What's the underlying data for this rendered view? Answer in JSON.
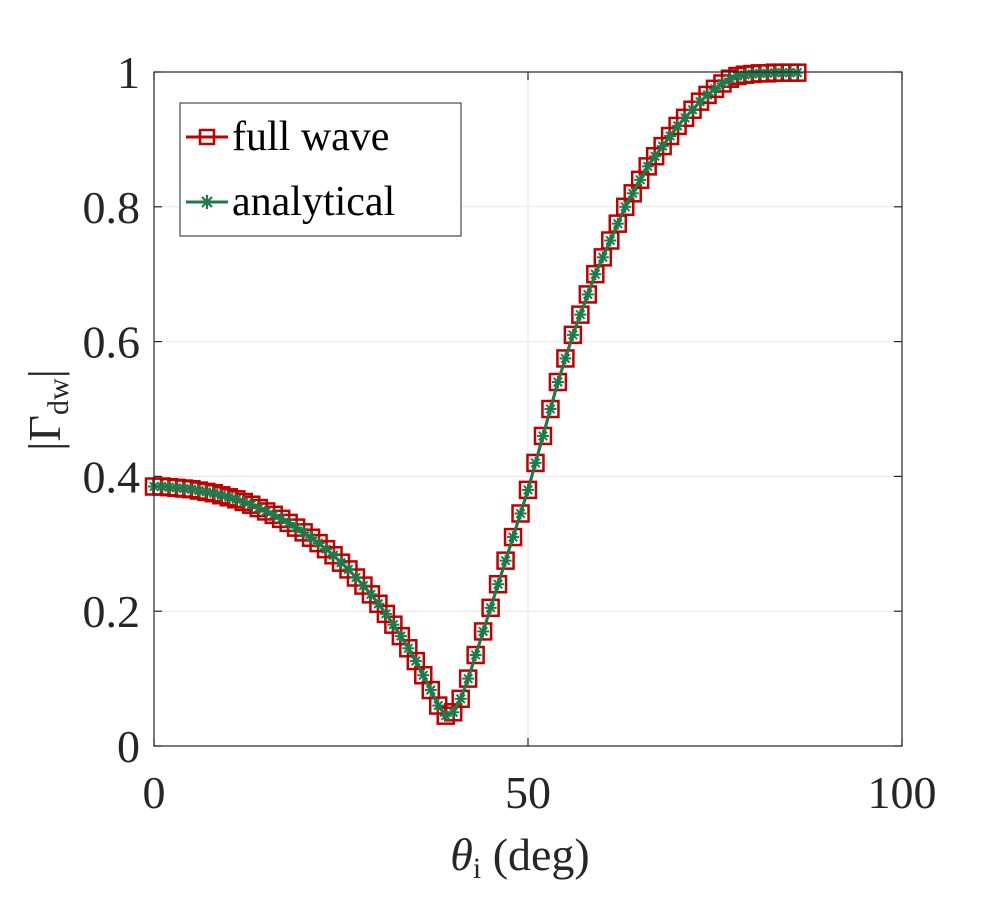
{
  "chart_data": {
    "type": "line",
    "title": "",
    "xlabel": {
      "main": "θ",
      "sub": "i",
      "rest": " (deg)"
    },
    "ylabel": {
      "main": "|Γ",
      "sub": "dw",
      "rest": "|"
    },
    "xlim": [
      0,
      100
    ],
    "ylim": [
      0,
      1
    ],
    "xticks": [
      0,
      50,
      100
    ],
    "xtick_labels": [
      "0",
      "50",
      "100"
    ],
    "yticks": [
      0,
      0.2,
      0.4,
      0.6,
      0.8,
      1
    ],
    "ytick_labels": [
      "0",
      "0.2",
      "0.4",
      "0.6",
      "0.8",
      "1"
    ],
    "grid": true,
    "legend_position": "top-left",
    "series": [
      {
        "name": "full wave",
        "color": "#c00000",
        "marker": "square",
        "x": [
          0,
          1,
          2,
          3,
          4,
          5,
          6,
          7,
          8,
          9,
          10,
          11,
          12,
          13,
          14,
          15,
          16,
          17,
          18,
          19,
          20,
          21,
          22,
          23,
          24,
          25,
          26,
          27,
          28,
          29,
          30,
          31,
          32,
          33,
          34,
          35,
          36,
          37,
          38,
          39,
          40,
          41,
          42,
          43,
          44,
          45,
          46,
          47,
          48,
          49,
          50,
          51,
          52,
          53,
          54,
          55,
          56,
          57,
          58,
          59,
          60,
          61,
          62,
          63,
          64,
          65,
          66,
          67,
          68,
          69,
          70,
          71,
          72,
          73,
          74,
          75,
          76,
          77,
          78,
          79,
          80,
          81,
          82,
          83,
          84,
          85,
          86
        ],
        "y": [
          0.385,
          0.385,
          0.384,
          0.383,
          0.382,
          0.381,
          0.379,
          0.377,
          0.375,
          0.372,
          0.369,
          0.366,
          0.362,
          0.358,
          0.353,
          0.348,
          0.343,
          0.337,
          0.331,
          0.324,
          0.317,
          0.309,
          0.301,
          0.292,
          0.283,
          0.272,
          0.262,
          0.25,
          0.238,
          0.225,
          0.211,
          0.196,
          0.18,
          0.163,
          0.145,
          0.126,
          0.105,
          0.083,
          0.06,
          0.045,
          0.05,
          0.07,
          0.1,
          0.135,
          0.17,
          0.205,
          0.24,
          0.275,
          0.31,
          0.345,
          0.38,
          0.42,
          0.46,
          0.5,
          0.54,
          0.575,
          0.61,
          0.64,
          0.67,
          0.7,
          0.725,
          0.75,
          0.775,
          0.8,
          0.82,
          0.84,
          0.86,
          0.875,
          0.89,
          0.905,
          0.92,
          0.932,
          0.944,
          0.956,
          0.966,
          0.975,
          0.983,
          0.99,
          0.994,
          0.996,
          0.997,
          0.998,
          0.998,
          0.999,
          0.999,
          0.999,
          0.999
        ]
      },
      {
        "name": "analytical",
        "color": "#1e7a4a",
        "marker": "asterisk",
        "x": [
          0,
          1,
          2,
          3,
          4,
          5,
          6,
          7,
          8,
          9,
          10,
          11,
          12,
          13,
          14,
          15,
          16,
          17,
          18,
          19,
          20,
          21,
          22,
          23,
          24,
          25,
          26,
          27,
          28,
          29,
          30,
          31,
          32,
          33,
          34,
          35,
          36,
          37,
          38,
          39,
          40,
          41,
          42,
          43,
          44,
          45,
          46,
          47,
          48,
          49,
          50,
          51,
          52,
          53,
          54,
          55,
          56,
          57,
          58,
          59,
          60,
          61,
          62,
          63,
          64,
          65,
          66,
          67,
          68,
          69,
          70,
          71,
          72,
          73,
          74,
          75,
          76,
          77,
          78,
          79,
          80,
          81,
          82,
          83,
          84,
          85,
          86
        ],
        "y": [
          0.385,
          0.385,
          0.384,
          0.383,
          0.382,
          0.381,
          0.379,
          0.377,
          0.375,
          0.372,
          0.369,
          0.366,
          0.362,
          0.358,
          0.353,
          0.348,
          0.343,
          0.337,
          0.331,
          0.324,
          0.317,
          0.309,
          0.301,
          0.292,
          0.283,
          0.272,
          0.262,
          0.25,
          0.238,
          0.225,
          0.211,
          0.196,
          0.18,
          0.163,
          0.145,
          0.126,
          0.105,
          0.083,
          0.06,
          0.045,
          0.05,
          0.07,
          0.1,
          0.135,
          0.17,
          0.205,
          0.24,
          0.275,
          0.31,
          0.345,
          0.38,
          0.42,
          0.46,
          0.5,
          0.54,
          0.575,
          0.61,
          0.64,
          0.67,
          0.7,
          0.725,
          0.75,
          0.775,
          0.8,
          0.82,
          0.84,
          0.86,
          0.875,
          0.89,
          0.905,
          0.92,
          0.932,
          0.944,
          0.956,
          0.966,
          0.975,
          0.983,
          0.99,
          0.994,
          0.996,
          0.997,
          0.998,
          0.998,
          0.999,
          0.999,
          0.999,
          0.999
        ]
      }
    ]
  }
}
